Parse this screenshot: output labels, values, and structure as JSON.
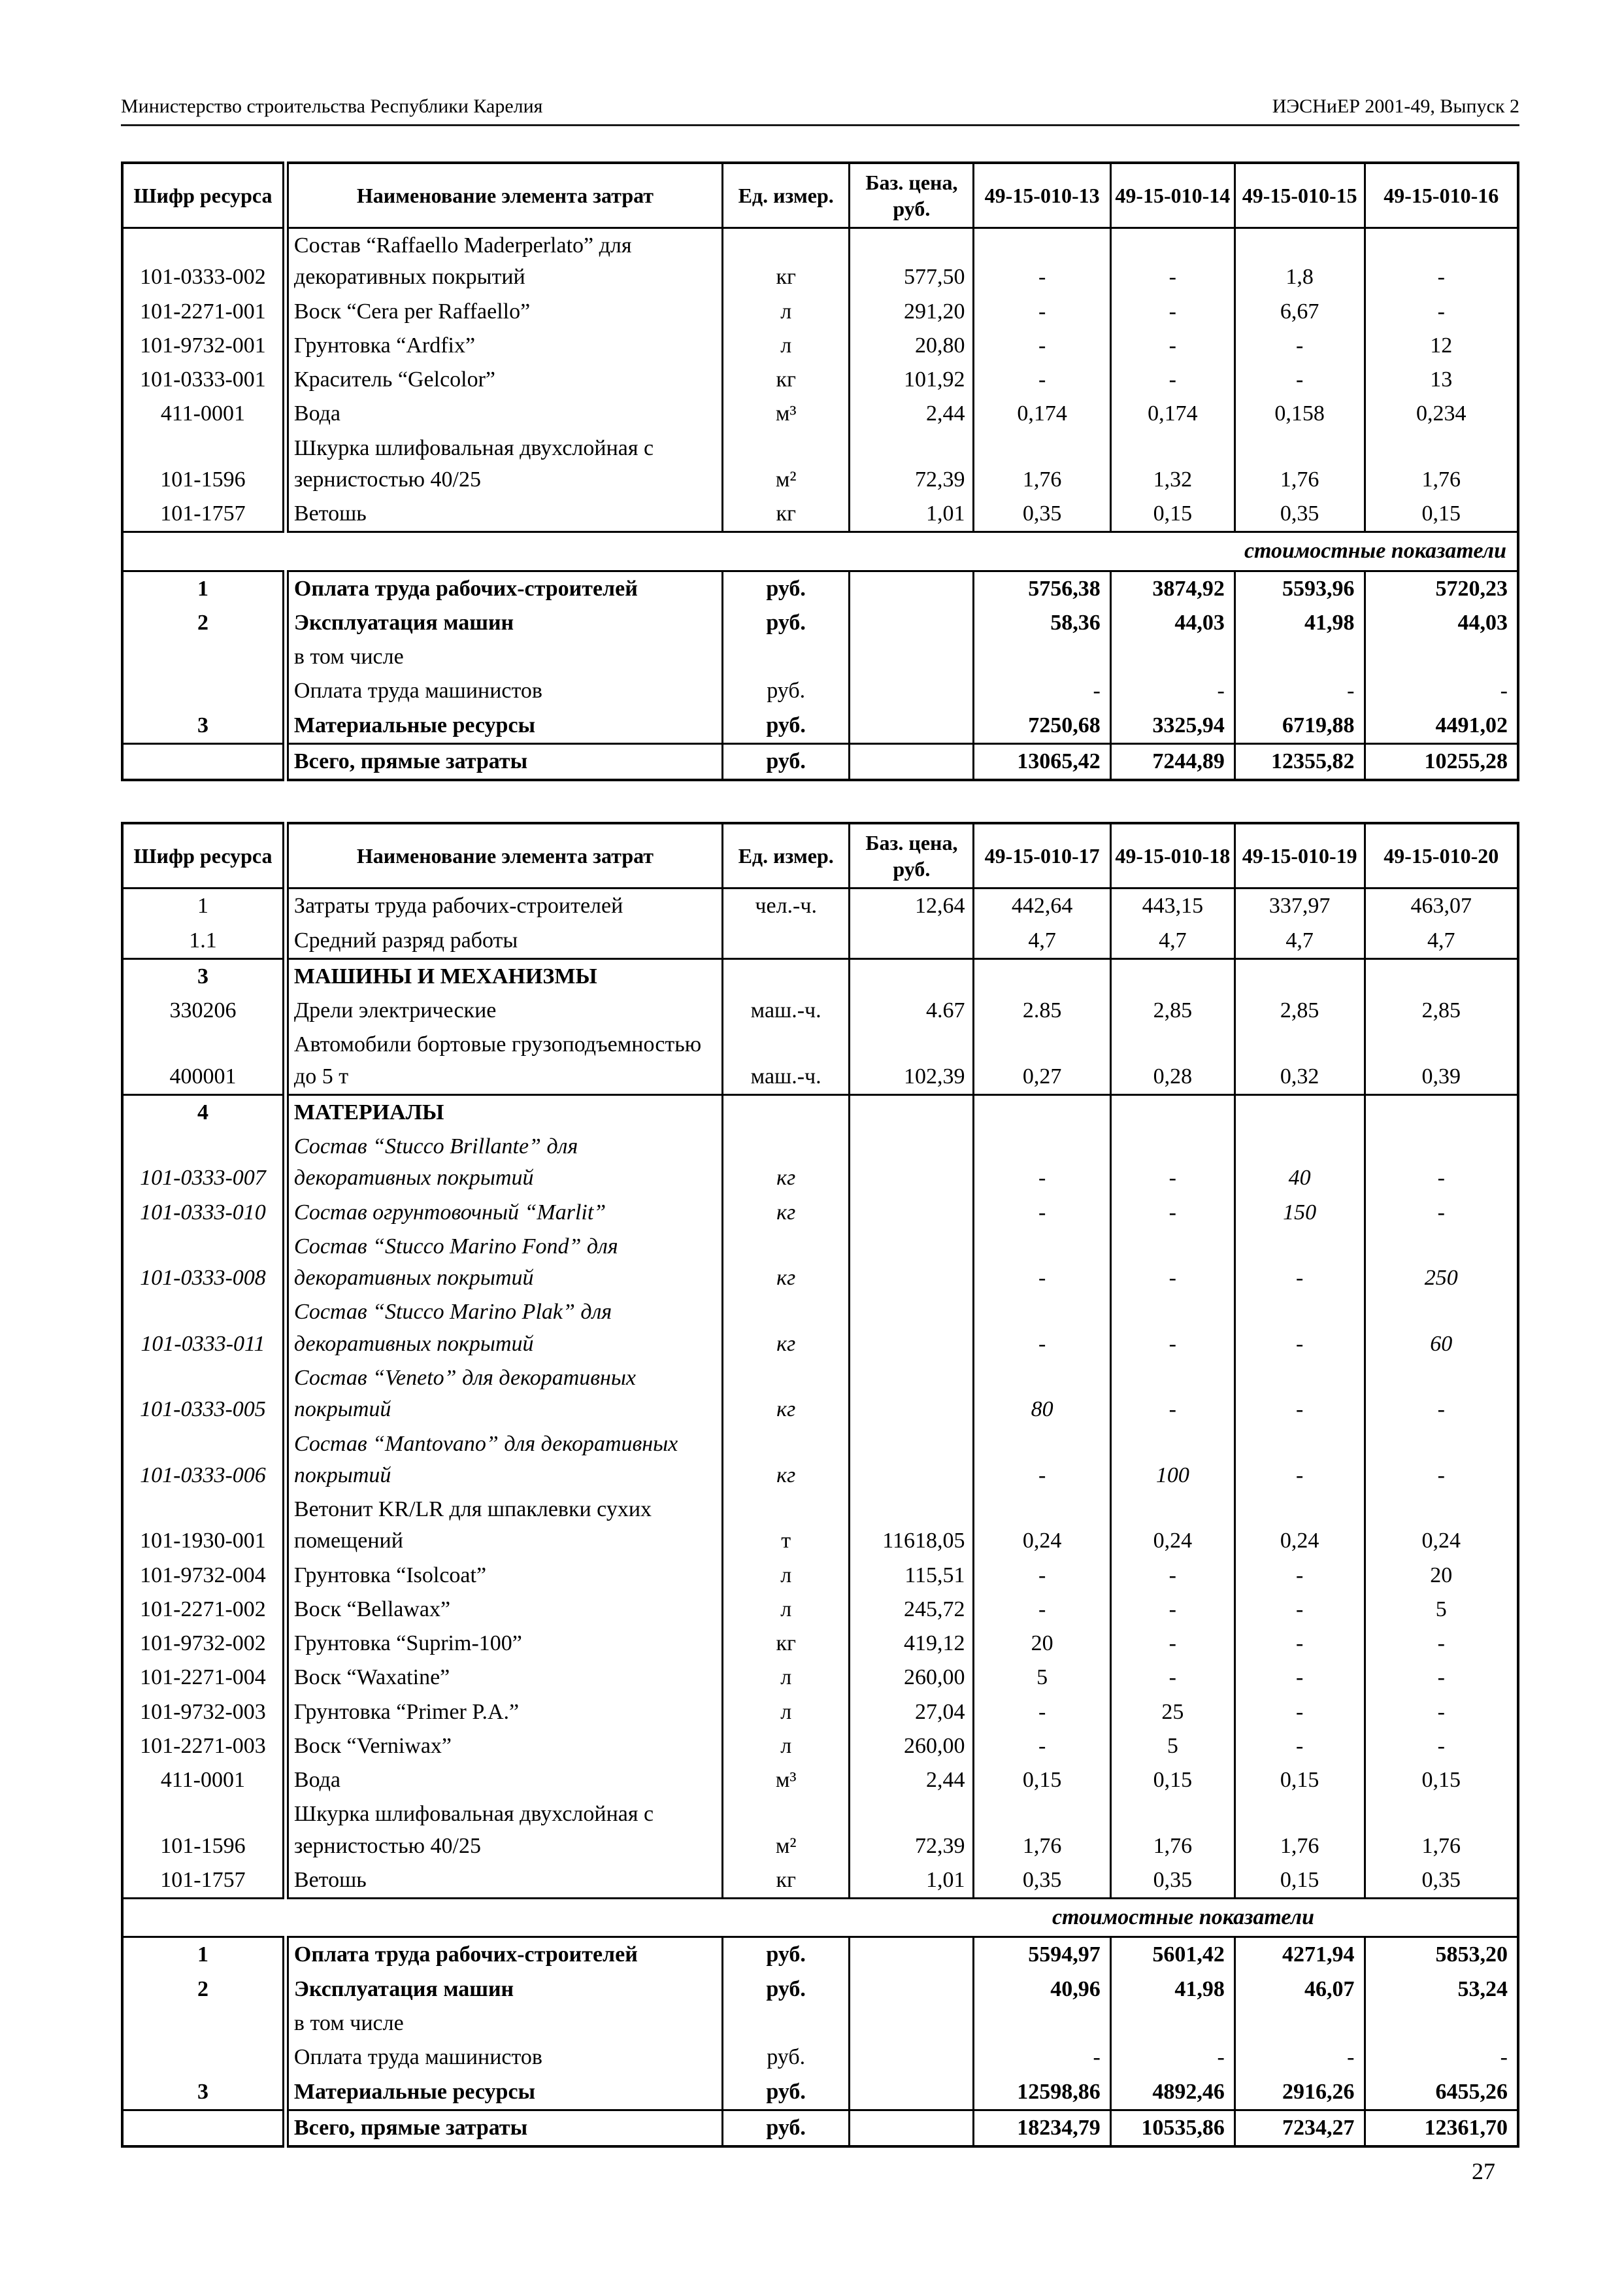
{
  "page": {
    "header_left": "Министерство строительства Республики Карелия",
    "header_right": "ИЭСНиЕР 2001-49, Выпуск 2",
    "page_number": "27",
    "band_label": "стоимостные показатели"
  },
  "tables": [
    {
      "title": "norms-49-15-010-13-16",
      "headers": [
        "Шифр ресурса",
        "Наименование элемента затрат",
        "Ед. измер.",
        "Баз. цена, руб.",
        "49-15-010-13",
        "49-15-010-14",
        "49-15-010-15",
        "49-15-010-16"
      ],
      "rows": [
        {
          "c": [
            "101-0333-002",
            "Состав “Raffaello Maderperlato” для декоративных покрытий",
            "кг",
            "577,50",
            "-",
            "-",
            "1,8",
            "-"
          ]
        },
        {
          "c": [
            "101-2271-001",
            "Воск “Cera per Raffaello”",
            "л",
            "291,20",
            "-",
            "-",
            "6,67",
            "-"
          ]
        },
        {
          "c": [
            "101-9732-001",
            "Грунтовка “Ardfix”",
            "л",
            "20,80",
            "-",
            "-",
            "-",
            "12"
          ]
        },
        {
          "c": [
            "101-0333-001",
            "Краситель “Gelcolor”",
            "кг",
            "101,92",
            "-",
            "-",
            "-",
            "13"
          ]
        },
        {
          "c": [
            "411-0001",
            "Вода",
            "м³",
            "2,44",
            "0,174",
            "0,174",
            "0,158",
            "0,234"
          ]
        },
        {
          "c": [
            "101-1596",
            "Шкурка шлифовальная двухслойная с зернистостью 40/25",
            "м²",
            "72,39",
            "1,76",
            "1,32",
            "1,76",
            "1,76"
          ]
        },
        {
          "c": [
            "101-1757",
            "Ветошь",
            "кг",
            "1,01",
            "0,35",
            "0,15",
            "0,35",
            "0,15"
          ]
        },
        {
          "band": "стоимостные показатели"
        },
        {
          "c": [
            "1",
            "Оплата труда рабочих-строителей",
            "руб.",
            "",
            "5756,38",
            "3874,92",
            "5593,96",
            "5720,23"
          ],
          "s": "b"
        },
        {
          "c": [
            "2",
            "Эксплуатация машин",
            "руб.",
            "",
            "58,36",
            "44,03",
            "41,98",
            "44,03"
          ],
          "s": "b"
        },
        {
          "c": [
            "",
            "в том числе",
            "",
            "",
            "",
            "",
            "",
            ""
          ]
        },
        {
          "c": [
            "",
            "Оплата труда машинистов",
            "руб.",
            "",
            "-",
            "-",
            "-",
            "-"
          ]
        },
        {
          "c": [
            "3",
            "Материальные ресурсы",
            "руб.",
            "",
            "7250,68",
            "3325,94",
            "6719,88",
            "4491,02"
          ],
          "s": "b"
        },
        {
          "c": [
            "",
            "Всего, прямые затраты",
            "руб.",
            "",
            "13065,42",
            "7244,89",
            "12355,82",
            "10255,28"
          ],
          "s": "b",
          "bt": true
        }
      ]
    },
    {
      "title": "norms-49-15-010-17-20",
      "headers": [
        "Шифр ресурса",
        "Наименование элемента затрат",
        "Ед. измер.",
        "Баз. цена, руб.",
        "49-15-010-17",
        "49-15-010-18",
        "49-15-010-19",
        "49-15-010-20"
      ],
      "rows": [
        {
          "c": [
            "1",
            "Затраты труда рабочих-строителей",
            "чел.-ч.",
            "12,64",
            "442,64",
            "443,15",
            "337,97",
            "463,07"
          ]
        },
        {
          "c": [
            "1.1",
            "Средний разряд работы",
            "",
            "",
            "4,7",
            "4,7",
            "4,7",
            "4,7"
          ]
        },
        {
          "c": [
            "3",
            "МАШИНЫ И МЕХАНИЗМЫ",
            "",
            "",
            "",
            "",
            "",
            ""
          ],
          "s": "b",
          "bt": true
        },
        {
          "c": [
            "330206",
            "Дрели электрические",
            "маш.-ч.",
            "4.67",
            "2.85",
            "2,85",
            "2,85",
            "2,85"
          ]
        },
        {
          "c": [
            "400001",
            "Автомобили бортовые грузоподъемностью до 5 т",
            "маш.-ч.",
            "102,39",
            "0,27",
            "0,28",
            "0,32",
            "0,39"
          ]
        },
        {
          "c": [
            "4",
            "МАТЕРИАЛЫ",
            "",
            "",
            "",
            "",
            "",
            ""
          ],
          "s": "b",
          "bt": true
        },
        {
          "c": [
            "101-0333-007",
            "Состав “Stucco Brillante” для декоративных покрытий",
            "кг",
            "",
            "-",
            "-",
            "40",
            "-"
          ],
          "s": "i"
        },
        {
          "c": [
            "101-0333-010",
            "Состав огрунтовочный “Marlit”",
            "кг",
            "",
            "-",
            "-",
            "150",
            "-"
          ],
          "s": "i"
        },
        {
          "c": [
            "101-0333-008",
            "Состав “Stucco Marino Fond” для декоративных покрытий",
            "кг",
            "",
            "-",
            "-",
            "-",
            "250"
          ],
          "s": "i"
        },
        {
          "c": [
            "101-0333-011",
            "Состав “Stucco Marino Plak” для декоративных покрытий",
            "кг",
            "",
            "-",
            "-",
            "-",
            "60"
          ],
          "s": "i"
        },
        {
          "c": [
            "101-0333-005",
            "Состав “Veneto” для декоративных покрытий",
            "кг",
            "",
            "80",
            "-",
            "-",
            "-"
          ],
          "s": "i"
        },
        {
          "c": [
            "101-0333-006",
            "Состав “Mantovano” для декоративных покрытий",
            "кг",
            "",
            "-",
            "100",
            "-",
            "-"
          ],
          "s": "i"
        },
        {
          "c": [
            "101-1930-001",
            "Ветонит KR/LR для шпаклевки сухих помещений",
            "т",
            "11618,05",
            "0,24",
            "0,24",
            "0,24",
            "0,24"
          ]
        },
        {
          "c": [
            "101-9732-004",
            "Грунтовка “Isolcoat”",
            "л",
            "115,51",
            "-",
            "-",
            "-",
            "20"
          ]
        },
        {
          "c": [
            "101-2271-002",
            "Воск “Bellawax”",
            "л",
            "245,72",
            "-",
            "-",
            "-",
            "5"
          ]
        },
        {
          "c": [
            "101-9732-002",
            "Грунтовка “Suprim-100”",
            "кг",
            "419,12",
            "20",
            "-",
            "-",
            "-"
          ]
        },
        {
          "c": [
            "101-2271-004",
            "Воск “Waxatine”",
            "л",
            "260,00",
            "5",
            "-",
            "-",
            "-"
          ]
        },
        {
          "c": [
            "101-9732-003",
            "Грунтовка “Primer P.A.”",
            "л",
            "27,04",
            "-",
            "25",
            "-",
            "-"
          ]
        },
        {
          "c": [
            "101-2271-003",
            "Воск “Verniwax”",
            "л",
            "260,00",
            "-",
            "5",
            "-",
            "-"
          ]
        },
        {
          "c": [
            "411-0001",
            "Вода",
            "м³",
            "2,44",
            "0,15",
            "0,15",
            "0,15",
            "0,15"
          ]
        },
        {
          "c": [
            "101-1596",
            "Шкурка шлифовальная двухслойная с зернистостью 40/25",
            "м²",
            "72,39",
            "1,76",
            "1,76",
            "1,76",
            "1,76"
          ]
        },
        {
          "c": [
            "101-1757",
            "Ветошь",
            "кг",
            "1,01",
            "0,35",
            "0,35",
            "0,15",
            "0,35"
          ]
        },
        {
          "band": "стоимостные показатели"
        },
        {
          "c": [
            "1",
            "Оплата труда рабочих-строителей",
            "руб.",
            "",
            "5594,97",
            "5601,42",
            "4271,94",
            "5853,20"
          ],
          "s": "b"
        },
        {
          "c": [
            "2",
            "Эксплуатация машин",
            "руб.",
            "",
            "40,96",
            "41,98",
            "46,07",
            "53,24"
          ],
          "s": "b"
        },
        {
          "c": [
            "",
            "в том числе",
            "",
            "",
            "",
            "",
            "",
            ""
          ]
        },
        {
          "c": [
            "",
            "Оплата труда машинистов",
            "руб.",
            "",
            "-",
            "-",
            "-",
            "-"
          ]
        },
        {
          "c": [
            "3",
            "Материальные ресурсы",
            "руб.",
            "",
            "12598,86",
            "4892,46",
            "2916,26",
            "6455,26"
          ],
          "s": "b"
        },
        {
          "c": [
            "",
            "Всего, прямые затраты",
            "руб.",
            "",
            "18234,79",
            "10535,86",
            "7234,27",
            "12361,70"
          ],
          "s": "b",
          "bt": true
        }
      ]
    }
  ]
}
